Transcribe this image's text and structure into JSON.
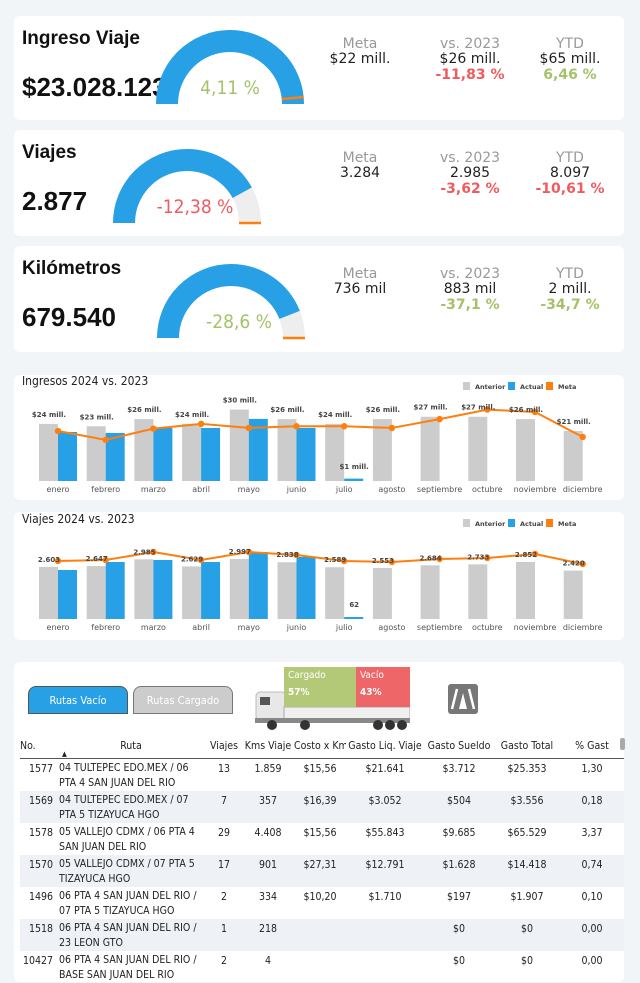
{
  "colors": {
    "blue": "#27a0e6",
    "gray": "#cccccc",
    "orange": "#ff7f0e",
    "green": "#a4c26a",
    "red": "#ef5b5f",
    "track": "#eeeeee"
  },
  "kpis": [
    {
      "title": "Ingreso Viaje",
      "value": "$23.028.123",
      "gauge_pct": "4,11 %",
      "gauge_fill": 1.0,
      "gauge_target": 0.97,
      "gauge_color": "#a4c26a",
      "meta_label": "Meta",
      "meta": "$22 mill.",
      "vs_label": "vs. 2023",
      "vs": "$26 mill.",
      "vs_pct": "-11,83 %",
      "vs_color": "#ef5b5f",
      "ytd_label": "YTD",
      "ytd": "$65 mill.",
      "ytd_pct": "6,46 %",
      "ytd_color": "#a4c26a"
    },
    {
      "title": "Viajes",
      "value": "2.877",
      "gauge_pct": "-12,38 %",
      "gauge_fill": 0.84,
      "gauge_target": 1.0,
      "gauge_color": "#ef5b5f",
      "meta_label": "Meta",
      "meta": "3.284",
      "vs_label": "vs. 2023",
      "vs": "2.985",
      "vs_pct": "-3,62 %",
      "vs_color": "#ef5b5f",
      "ytd_label": "YTD",
      "ytd": "8.097",
      "ytd_pct": "-10,61 %",
      "ytd_color": "#ef5b5f"
    },
    {
      "title": "Kilómetros",
      "value": "679.540",
      "gauge_pct": "-28,6 %",
      "gauge_fill": 0.88,
      "gauge_target": 1.0,
      "gauge_color": "#a4c26a",
      "meta_label": "Meta",
      "meta": "736 mil",
      "vs_label": "vs. 2023",
      "vs": "883 mil",
      "vs_pct": "-37,1 %",
      "vs_color": "#a4c26a",
      "ytd_label": "YTD",
      "ytd": "2 mill.",
      "ytd_pct": "-34,7 %",
      "ytd_color": "#a4c26a"
    }
  ],
  "chart_data": [
    {
      "type": "bar",
      "title": "Ingresos 2024 vs. 2023",
      "legend": [
        "Anterior",
        "Actual",
        "Meta"
      ],
      "legend_position": "top-right",
      "categories": [
        "enero",
        "febrero",
        "marzo",
        "abril",
        "mayo",
        "junio",
        "julio",
        "agosto",
        "septiembre",
        "octubre",
        "noviembre",
        "diciembre"
      ],
      "series": [
        {
          "name": "Anterior",
          "type": "bar",
          "values": [
            24,
            23,
            26,
            24,
            30,
            26,
            24,
            26,
            27,
            27,
            26,
            21
          ],
          "labels": [
            "$24 mill.",
            "$23 mill.",
            "$26 mill.",
            "$24 mill.",
            "$30 mill.",
            "$26 mill.",
            "$24 mill.",
            "$26 mill.",
            "$27 mill.",
            "$27 mill.",
            "$26 mill.",
            "$21 mill."
          ]
        },
        {
          "name": "Actual",
          "type": "bar",
          "values": [
            20.6,
            20.2,
            22.3,
            22.3,
            26.1,
            22.3,
            1,
            null,
            null,
            null,
            null,
            null
          ],
          "labels": [
            null,
            null,
            null,
            null,
            null,
            null,
            "$1 mill.",
            null,
            null,
            null,
            null,
            null
          ]
        },
        {
          "name": "Meta",
          "type": "line",
          "values": [
            21,
            17.3,
            22,
            24,
            22.3,
            23,
            23,
            22.3,
            26,
            30,
            29,
            18.5
          ]
        }
      ],
      "unit": "mill."
    },
    {
      "type": "bar",
      "title": "Viajes 2024 vs. 2023",
      "legend": [
        "Anterior",
        "Actual",
        "Meta"
      ],
      "legend_position": "top-right",
      "categories": [
        "enero",
        "febrero",
        "marzo",
        "abril",
        "mayo",
        "junio",
        "julio",
        "agosto",
        "septiembre",
        "octubre",
        "noviembre",
        "diciembre"
      ],
      "series": [
        {
          "name": "Anterior",
          "type": "bar",
          "values": [
            2603,
            2647,
            2985,
            2629,
            2997,
            2838,
            2589,
            2553,
            2684,
            2733,
            2852,
            2420
          ],
          "labels": [
            "2.603",
            "2.647",
            "2.985",
            "2.629",
            "2.997",
            "2.838",
            "2.589",
            "2.553",
            "2.684",
            "2.733",
            "2.852",
            "2.420"
          ]
        },
        {
          "name": "Actual",
          "type": "bar",
          "values": [
            2450,
            2850,
            2950,
            2850,
            3350,
            3100,
            62,
            null,
            null,
            null,
            null,
            null
          ],
          "labels": [
            null,
            null,
            null,
            null,
            null,
            null,
            "62",
            null,
            null,
            null,
            null,
            null
          ]
        },
        {
          "name": "Meta",
          "type": "line",
          "values": [
            2900,
            2950,
            3350,
            2950,
            3350,
            3200,
            2900,
            2850,
            3000,
            3050,
            3250,
            2750
          ]
        }
      ]
    }
  ],
  "routes": {
    "tabs": [
      {
        "label": "Rutas Vacío",
        "active": true
      },
      {
        "label": "Rutas Cargado",
        "active": false
      }
    ],
    "split": {
      "loaded_label": "Cargado",
      "loaded_pct": "57%",
      "empty_label": "Vacío",
      "empty_pct": "43%"
    },
    "columns": [
      "No.",
      "Ruta",
      "Viajes",
      "Kms Viaje",
      "Costo x Km",
      "Gasto Liq. Viaje",
      "Gasto Sueldo",
      "Gasto Total",
      "% Gast"
    ],
    "sort_indicator": "▲",
    "rows": [
      [
        "1577",
        "04 TULTEPEC EDO.MEX / 06 PTA 4 SAN JUAN DEL RIO",
        "13",
        "1.859",
        "$15,56",
        "$21.641",
        "$3.712",
        "$25.353",
        "1,30"
      ],
      [
        "1569",
        "04 TULTEPEC EDO.MEX / 07 PTA 5 TIZAYUCA HGO",
        "7",
        "357",
        "$16,39",
        "$3.052",
        "$504",
        "$3.556",
        "0,18"
      ],
      [
        "1578",
        "05 VALLEJO CDMX / 06 PTA 4 SAN JUAN DEL RIO",
        "29",
        "4.408",
        "$15,56",
        "$55.843",
        "$9.685",
        "$65.529",
        "3,37"
      ],
      [
        "1570",
        "05 VALLEJO CDMX / 07 PTA 5 TIZAYUCA HGO",
        "17",
        "901",
        "$27,31",
        "$12.791",
        "$1.628",
        "$14.418",
        "0,74"
      ],
      [
        "1496",
        "06 PTA 4 SAN JUAN DEL RIO / 07 PTA 5 TIZAYUCA HGO",
        "2",
        "334",
        "$10,20",
        "$1.710",
        "$197",
        "$1.907",
        "0,10"
      ],
      [
        "1518",
        "06 PTA 4 SAN JUAN DEL RIO / 23 LEON GTO",
        "1",
        "218",
        "",
        "",
        "$0",
        "$0",
        "0,00"
      ],
      [
        "10427",
        "06 PTA 4 SAN JUAN DEL RIO / BASE SAN JUAN DEL RIO",
        "2",
        "4",
        "",
        "",
        "$0",
        "$0",
        "0,00"
      ]
    ]
  }
}
